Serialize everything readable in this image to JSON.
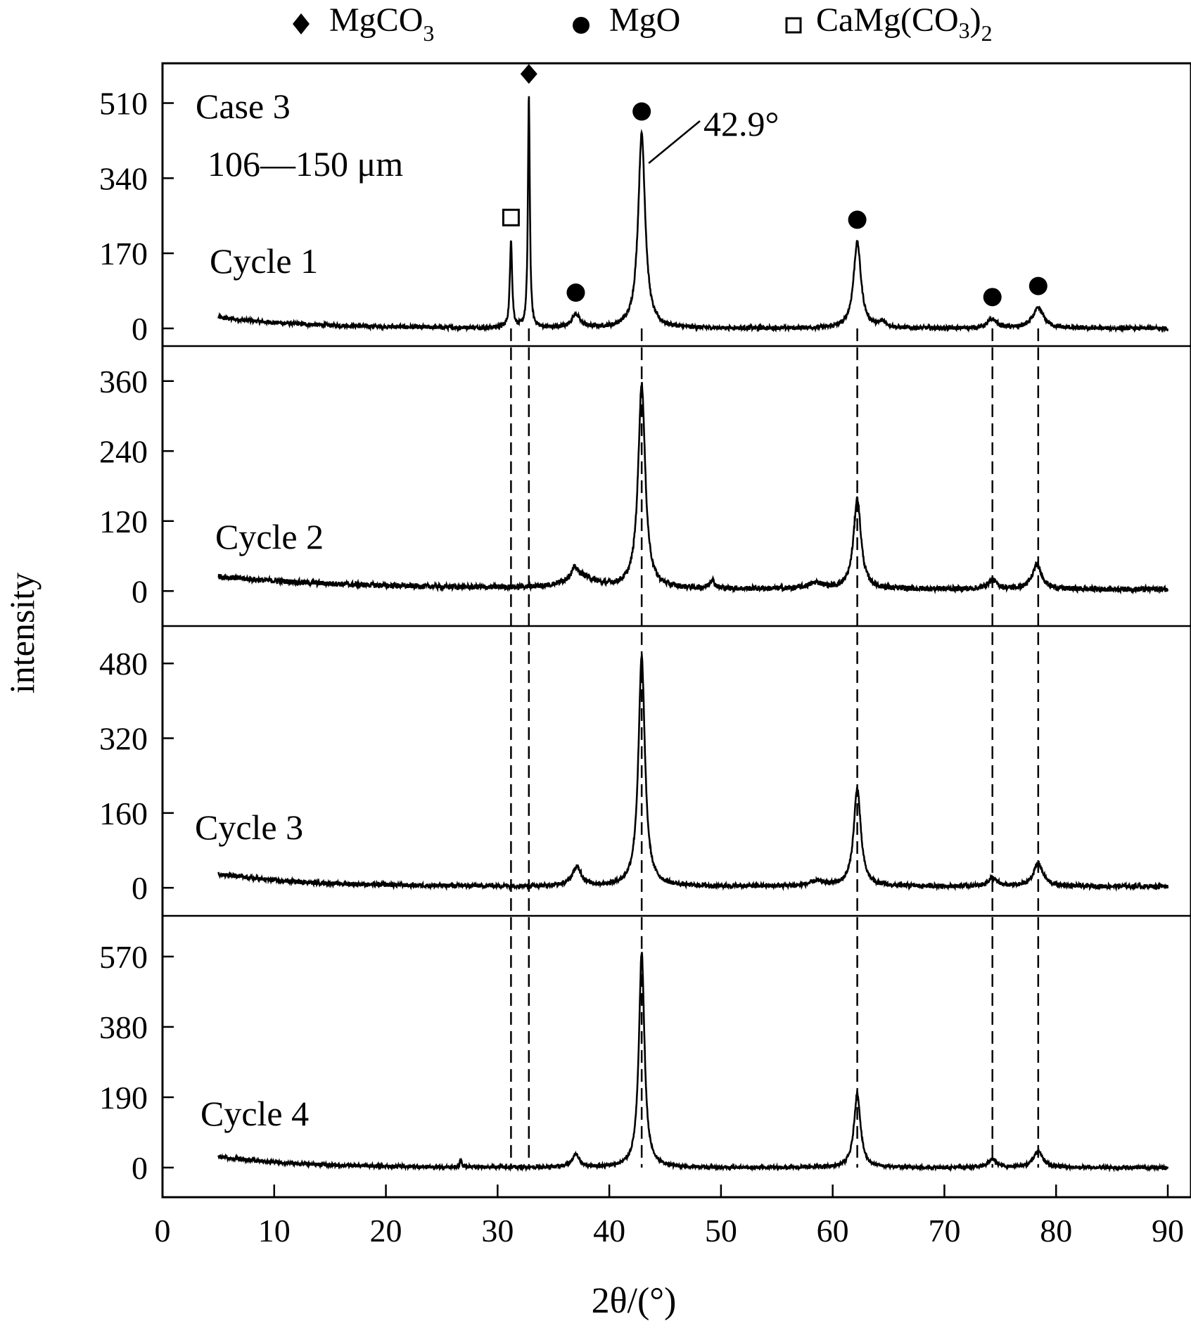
{
  "chart_data": {
    "type": "line",
    "title": "",
    "xlabel": "2θ/(°)",
    "ylabel": "intensity",
    "xlim": [
      0,
      90
    ],
    "xticks": [
      0,
      10,
      20,
      30,
      40,
      50,
      60,
      70,
      80,
      90
    ],
    "legend": [
      {
        "marker": "diamond",
        "label": "MgCO",
        "sub": "3"
      },
      {
        "marker": "circle",
        "label": "MgO",
        "sub": ""
      },
      {
        "marker": "square",
        "label": "CaMg(CO",
        "sub": "3",
        "tail": ")",
        "sub2": "2"
      }
    ],
    "annotations": {
      "case": "Case 3",
      "size_range": "106—150 μm",
      "peak_label": "42.9°",
      "peak_label_x": 42.9
    },
    "reference_lines": [
      31.2,
      32.8,
      42.9,
      62.2,
      74.3,
      78.4
    ],
    "phase_markers": [
      {
        "phase": "CaMg(CO3)2",
        "marker": "square",
        "x": 31.2
      },
      {
        "phase": "MgCO3",
        "marker": "diamond",
        "x": 32.8
      },
      {
        "phase": "MgO",
        "marker": "circle",
        "x": 37.0
      },
      {
        "phase": "MgO",
        "marker": "circle",
        "x": 42.9
      },
      {
        "phase": "MgO",
        "marker": "circle",
        "x": 62.2
      },
      {
        "phase": "MgO",
        "marker": "circle",
        "x": 74.3
      },
      {
        "phase": "MgO",
        "marker": "circle",
        "x": 78.4
      }
    ],
    "series": [
      {
        "name": "Cycle 1",
        "ylim": [
          -40,
          600
        ],
        "yticks": [
          0,
          170,
          340,
          510
        ],
        "baseline": {
          "start": 25,
          "decay": 8,
          "end": 0
        },
        "peaks": [
          {
            "x": 31.2,
            "height": 200,
            "width": 0.12
          },
          {
            "x": 32.8,
            "height": 525,
            "width": 0.1
          },
          {
            "x": 37.0,
            "height": 30,
            "width": 0.45
          },
          {
            "x": 42.9,
            "height": 440,
            "width": 0.38
          },
          {
            "x": 62.2,
            "height": 195,
            "width": 0.4
          },
          {
            "x": 64.5,
            "height": 12,
            "width": 0.4
          },
          {
            "x": 74.3,
            "height": 20,
            "width": 0.5
          },
          {
            "x": 78.4,
            "height": 45,
            "width": 0.6
          }
        ]
      },
      {
        "name": "Cycle 2",
        "ylim": [
          -60,
          420
        ],
        "yticks": [
          0,
          120,
          240,
          360
        ],
        "baseline": {
          "start": 25,
          "decay": 12,
          "end": 3
        },
        "peaks": [
          {
            "x": 37.3,
            "height": 22,
            "width": 1.5
          },
          {
            "x": 36.9,
            "height": 15,
            "width": 0.3
          },
          {
            "x": 42.9,
            "height": 350,
            "width": 0.38
          },
          {
            "x": 49.2,
            "height": 15,
            "width": 0.25
          },
          {
            "x": 58.5,
            "height": 10,
            "width": 0.8
          },
          {
            "x": 62.2,
            "height": 155,
            "width": 0.4
          },
          {
            "x": 74.3,
            "height": 15,
            "width": 0.5
          },
          {
            "x": 78.3,
            "height": 42,
            "width": 0.5
          }
        ]
      },
      {
        "name": "Cycle 3",
        "ylim": [
          -60,
          560
        ],
        "yticks": [
          0,
          160,
          320,
          480
        ],
        "baseline": {
          "start": 30,
          "decay": 7,
          "end": 3
        },
        "peaks": [
          {
            "x": 37.1,
            "height": 40,
            "width": 0.5
          },
          {
            "x": 42.9,
            "height": 490,
            "width": 0.35
          },
          {
            "x": 58.6,
            "height": 10,
            "width": 0.8
          },
          {
            "x": 62.2,
            "height": 210,
            "width": 0.38
          },
          {
            "x": 74.3,
            "height": 18,
            "width": 0.45
          },
          {
            "x": 78.4,
            "height": 50,
            "width": 0.5
          }
        ]
      },
      {
        "name": "Cycle 4",
        "ylim": [
          -80,
          680
        ],
        "yticks": [
          0,
          190,
          380,
          570
        ],
        "baseline": {
          "start": 30,
          "decay": 7,
          "end": 0
        },
        "peaks": [
          {
            "x": 26.7,
            "height": 20,
            "width": 0.1
          },
          {
            "x": 37.0,
            "height": 35,
            "width": 0.4
          },
          {
            "x": 42.9,
            "height": 580,
            "width": 0.3
          },
          {
            "x": 62.2,
            "height": 200,
            "width": 0.35
          },
          {
            "x": 74.3,
            "height": 22,
            "width": 0.45
          },
          {
            "x": 78.4,
            "height": 45,
            "width": 0.5
          }
        ]
      }
    ]
  }
}
